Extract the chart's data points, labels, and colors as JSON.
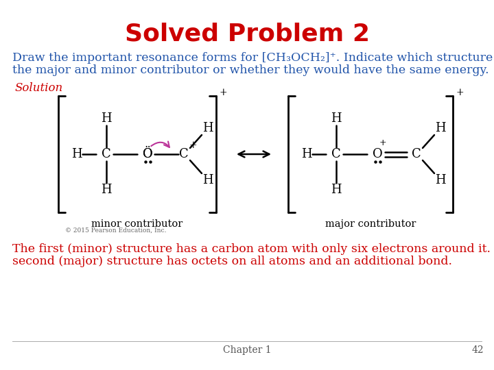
{
  "title": "Solved Problem 2",
  "title_color": "#cc0000",
  "title_fontsize": 26,
  "problem_text_line1": "Draw the important resonance forms for [CH₃OCH₂]⁺. Indicate which structure is",
  "problem_text_line2": "the major and minor contributor or whether they would have the same energy.",
  "problem_text_color": "#2255aa",
  "problem_text_fontsize": 12.5,
  "solution_label": "Solution",
  "solution_color": "#cc0000",
  "solution_fontsize": 12,
  "explanation_line1": "The first (minor) structure has a carbon atom with only six electrons around it. The",
  "explanation_line2": "second (major) structure has octets on all atoms and an additional bond.",
  "explanation_color": "#cc0000",
  "explanation_fontsize": 12.5,
  "footer_chapter": "Chapter 1",
  "footer_page": "42",
  "footer_fontsize": 10,
  "footer_color": "#555555",
  "copyright_text": "© 2015 Pearson Education, Inc.",
  "copyright_fontsize": 6.5,
  "copyright_color": "#666666",
  "bg_color": "#ffffff",
  "arrow_color": "#bb3399"
}
